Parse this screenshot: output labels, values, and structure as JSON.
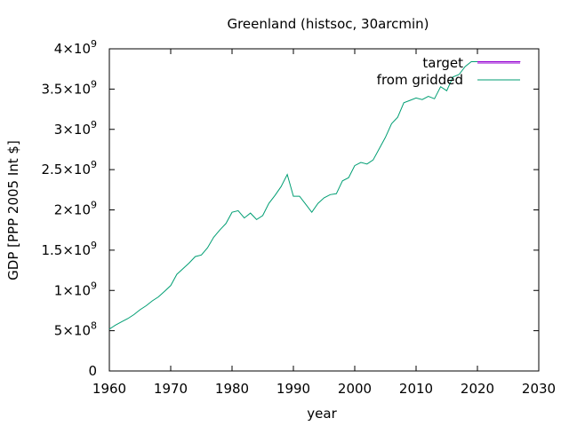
{
  "chart_data": {
    "type": "line",
    "title": "Greenland (histsoc, 30arcmin)",
    "xlabel": "year",
    "ylabel": "GDP [PPP 2005 Int $]",
    "xlim": [
      1960,
      2030
    ],
    "ylim": [
      0,
      4000000000
    ],
    "x_ticks": [
      "1960",
      "1970",
      "1980",
      "1990",
      "2000",
      "2010",
      "2020",
      "2030"
    ],
    "y_ticks": [
      {
        "value": 0,
        "mant": "0",
        "exp": ""
      },
      {
        "value": 500000000,
        "mant": "5×10",
        "exp": "8"
      },
      {
        "value": 1000000000,
        "mant": "1×10",
        "exp": "9"
      },
      {
        "value": 1500000000,
        "mant": "1.5×10",
        "exp": "9"
      },
      {
        "value": 2000000000,
        "mant": "2×10",
        "exp": "9"
      },
      {
        "value": 2500000000,
        "mant": "2.5×10",
        "exp": "9"
      },
      {
        "value": 3000000000,
        "mant": "3×10",
        "exp": "9"
      },
      {
        "value": 3500000000,
        "mant": "3.5×10",
        "exp": "9"
      },
      {
        "value": 4000000000,
        "mant": "4×10",
        "exp": "9"
      }
    ],
    "legend_position": "top-right",
    "grid": false,
    "series": [
      {
        "name": "target",
        "color": "#9400d3",
        "x": [
          2020,
          2021,
          2022,
          2023,
          2024,
          2025,
          2026,
          2027
        ],
        "y": [
          3840000000,
          3840000000,
          3840000000,
          3840000000,
          3840000000,
          3840000000,
          3840000000,
          3840000000
        ]
      },
      {
        "name": "from gridded",
        "color": "#009e73",
        "x": [
          1960,
          1961,
          1962,
          1963,
          1964,
          1965,
          1966,
          1967,
          1968,
          1969,
          1970,
          1971,
          1972,
          1973,
          1974,
          1975,
          1976,
          1977,
          1978,
          1979,
          1980,
          1981,
          1982,
          1983,
          1984,
          1985,
          1986,
          1987,
          1988,
          1989,
          1990,
          1991,
          1992,
          1993,
          1994,
          1995,
          1996,
          1997,
          1998,
          1999,
          2000,
          2001,
          2002,
          2003,
          2004,
          2005,
          2006,
          2007,
          2008,
          2009,
          2010,
          2011,
          2012,
          2013,
          2014,
          2015,
          2016,
          2017,
          2018,
          2019,
          2020
        ],
        "y": [
          520000000,
          570000000,
          610000000,
          650000000,
          700000000,
          760000000,
          810000000,
          870000000,
          920000000,
          990000000,
          1060000000,
          1200000000,
          1270000000,
          1340000000,
          1420000000,
          1440000000,
          1530000000,
          1660000000,
          1750000000,
          1830000000,
          1970000000,
          1990000000,
          1900000000,
          1960000000,
          1880000000,
          1930000000,
          2080000000,
          2180000000,
          2290000000,
          2440000000,
          2170000000,
          2170000000,
          2070000000,
          1970000000,
          2080000000,
          2150000000,
          2190000000,
          2200000000,
          2360000000,
          2400000000,
          2550000000,
          2590000000,
          2570000000,
          2620000000,
          2760000000,
          2900000000,
          3070000000,
          3150000000,
          3330000000,
          3360000000,
          3390000000,
          3370000000,
          3410000000,
          3380000000,
          3530000000,
          3480000000,
          3650000000,
          3680000000,
          3780000000,
          3840000000,
          3840000000
        ]
      }
    ]
  }
}
